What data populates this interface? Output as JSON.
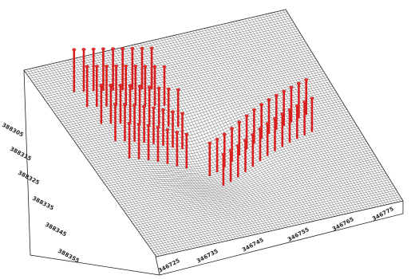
{
  "chart_data": {
    "type": "surface3d",
    "x_ticks": [
      "346725",
      "346735",
      "346745",
      "346755",
      "346765",
      "346775"
    ],
    "y_ticks": [
      "388305",
      "388315",
      "388325",
      "388335",
      "388345",
      "388355"
    ],
    "xlim": [
      346720,
      346780
    ],
    "ylim": [
      388300,
      388360
    ],
    "grid": true,
    "colors": {
      "surface": "#ffffff",
      "mesh": "#3a3a3a",
      "piles": "#e02a2a"
    },
    "piles": [
      {
        "x": 346727.0,
        "y": 388309.0
      },
      {
        "x": 346729.0,
        "y": 388309.5
      },
      {
        "x": 346731.0,
        "y": 388310.0
      },
      {
        "x": 346733.0,
        "y": 388310.5
      },
      {
        "x": 346735.0,
        "y": 388311.0
      },
      {
        "x": 346737.0,
        "y": 388311.5
      },
      {
        "x": 346739.0,
        "y": 388312.0
      },
      {
        "x": 346741.0,
        "y": 388312.5
      },
      {
        "x": 346743.0,
        "y": 388313.0
      },
      {
        "x": 346727.5,
        "y": 388314.0
      },
      {
        "x": 346729.5,
        "y": 388314.5
      },
      {
        "x": 346731.5,
        "y": 388315.0
      },
      {
        "x": 346733.5,
        "y": 388315.5
      },
      {
        "x": 346735.5,
        "y": 388316.0
      },
      {
        "x": 346737.5,
        "y": 388316.5
      },
      {
        "x": 346739.5,
        "y": 388317.0
      },
      {
        "x": 346741.5,
        "y": 388317.5
      },
      {
        "x": 346743.5,
        "y": 388318.0
      },
      {
        "x": 346728.0,
        "y": 388319.5
      },
      {
        "x": 346730.0,
        "y": 388320.0
      },
      {
        "x": 346732.0,
        "y": 388320.5
      },
      {
        "x": 346734.0,
        "y": 388321.0
      },
      {
        "x": 346736.0,
        "y": 388321.5
      },
      {
        "x": 346738.0,
        "y": 388322.0
      },
      {
        "x": 346740.0,
        "y": 388322.5
      },
      {
        "x": 346742.0,
        "y": 388323.0
      },
      {
        "x": 346744.0,
        "y": 388323.5
      },
      {
        "x": 346728.5,
        "y": 388325.0
      },
      {
        "x": 346730.5,
        "y": 388325.5
      },
      {
        "x": 346732.5,
        "y": 388326.0
      },
      {
        "x": 346734.5,
        "y": 388326.5
      },
      {
        "x": 346736.5,
        "y": 388327.0
      },
      {
        "x": 346738.5,
        "y": 388327.5
      },
      {
        "x": 346740.5,
        "y": 388328.0
      },
      {
        "x": 346742.5,
        "y": 388328.5
      },
      {
        "x": 346729.0,
        "y": 388330.5
      },
      {
        "x": 346731.0,
        "y": 388331.0
      },
      {
        "x": 346733.0,
        "y": 388331.5
      },
      {
        "x": 346735.0,
        "y": 388332.0
      },
      {
        "x": 346737.0,
        "y": 388332.5
      },
      {
        "x": 346739.0,
        "y": 388333.0
      },
      {
        "x": 346741.0,
        "y": 388333.5
      },
      {
        "x": 346745.0,
        "y": 388336.5
      },
      {
        "x": 346747.0,
        "y": 388336.0
      },
      {
        "x": 346749.0,
        "y": 388335.5
      },
      {
        "x": 346751.0,
        "y": 388335.0
      },
      {
        "x": 346753.0,
        "y": 388334.5
      },
      {
        "x": 346755.0,
        "y": 388334.0
      },
      {
        "x": 346757.0,
        "y": 388333.5
      },
      {
        "x": 346759.0,
        "y": 388333.0
      },
      {
        "x": 346761.0,
        "y": 388332.5
      },
      {
        "x": 346763.0,
        "y": 388332.0
      },
      {
        "x": 346765.0,
        "y": 388331.5
      },
      {
        "x": 346767.0,
        "y": 388331.0
      },
      {
        "x": 346769.0,
        "y": 388330.5
      },
      {
        "x": 346771.0,
        "y": 388330.0
      },
      {
        "x": 346746.0,
        "y": 388341.0
      },
      {
        "x": 346748.0,
        "y": 388340.5
      },
      {
        "x": 346750.0,
        "y": 388340.0
      },
      {
        "x": 346752.0,
        "y": 388339.5
      },
      {
        "x": 346754.0,
        "y": 388339.0
      },
      {
        "x": 346756.0,
        "y": 388338.5
      },
      {
        "x": 346758.0,
        "y": 388338.0
      },
      {
        "x": 346760.0,
        "y": 388337.5
      },
      {
        "x": 346762.0,
        "y": 388337.0
      },
      {
        "x": 346764.0,
        "y": 388336.5
      },
      {
        "x": 346766.0,
        "y": 388336.0
      },
      {
        "x": 346768.0,
        "y": 388335.5
      },
      {
        "x": 346770.0,
        "y": 388335.0
      }
    ]
  }
}
